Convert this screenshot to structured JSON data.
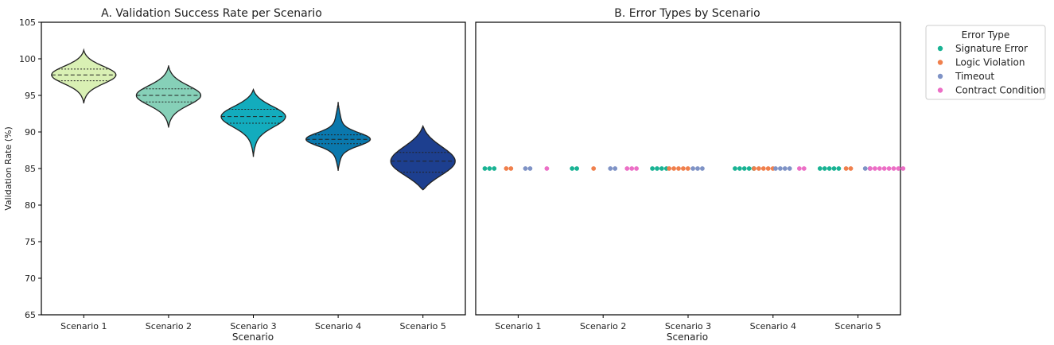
{
  "chart_data": [
    {
      "type": "violin",
      "title": "A. Validation Success Rate per Scenario",
      "xlabel": "Scenario",
      "ylabel": "Validation Rate (%)",
      "ylim": [
        65,
        105
      ],
      "yticks": [
        65,
        70,
        75,
        80,
        85,
        90,
        95,
        100,
        105
      ],
      "categories": [
        "Scenario 1",
        "Scenario 2",
        "Scenario 3",
        "Scenario 4",
        "Scenario 5"
      ],
      "colors": [
        "#d9f0b4",
        "#86d0b8",
        "#13acbd",
        "#0a78ad",
        "#1d3f8f"
      ],
      "violins": [
        {
          "min": 93.9,
          "max": 101.2,
          "q1": 97.0,
          "median": 97.8,
          "q3": 98.6
        },
        {
          "min": 90.6,
          "max": 99.1,
          "q1": 94.1,
          "median": 95.0,
          "q3": 95.9
        },
        {
          "min": 86.6,
          "max": 95.8,
          "q1": 91.2,
          "median": 92.1,
          "q3": 93.1
        },
        {
          "min": 84.7,
          "max": 94.1,
          "q1": 88.4,
          "median": 89.0,
          "q3": 89.6
        },
        {
          "min": 82.1,
          "max": 90.8,
          "q1": 84.5,
          "median": 86.0,
          "q3": 87.2
        }
      ],
      "grid": false
    },
    {
      "type": "scatter",
      "title": "B. Error Types by Scenario",
      "xlabel": "Scenario",
      "ylabel": "",
      "categories": [
        "Scenario 1",
        "Scenario 2",
        "Scenario 3",
        "Scenario 4",
        "Scenario 5"
      ],
      "ylim": [
        65,
        105
      ],
      "y_value": 85,
      "legend_title": "Error Type",
      "legend_position": "outside-right",
      "series": [
        {
          "name": "Signature Error",
          "color": "#1ab394",
          "counts": [
            3,
            2,
            4,
            5,
            5
          ]
        },
        {
          "name": "Logic Violation",
          "color": "#f0804d",
          "counts": [
            2,
            1,
            5,
            5,
            2
          ]
        },
        {
          "name": "Timeout",
          "color": "#7f93c6",
          "counts": [
            2,
            2,
            3,
            4,
            2
          ]
        },
        {
          "name": "Contract Condition",
          "color": "#ec6fc6",
          "counts": [
            1,
            3,
            0,
            2,
            8
          ]
        }
      ],
      "grid": false
    }
  ]
}
